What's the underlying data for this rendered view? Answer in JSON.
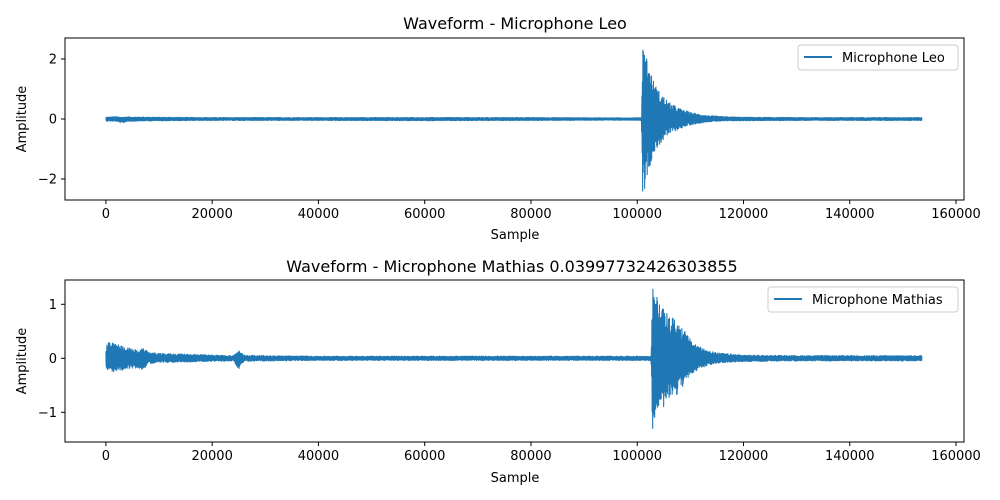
{
  "chart_data": [
    {
      "type": "line",
      "title": "Waveform - Microphone Leo",
      "xlabel": "Sample",
      "ylabel": "Amplitude",
      "xlim": [
        -7700,
        161500
      ],
      "ylim": [
        -2.7,
        2.7
      ],
      "xticks": [
        0,
        20000,
        40000,
        60000,
        80000,
        100000,
        120000,
        140000,
        160000
      ],
      "yticks": [
        -2,
        0,
        2
      ],
      "xtick_labels": [
        "0",
        "20000",
        "40000",
        "60000",
        "80000",
        "100000",
        "120000",
        "140000",
        "160000"
      ],
      "ytick_labels": [
        "−2",
        "0",
        "2"
      ],
      "grid": false,
      "legend_position": "top-right",
      "color": "#1f77b4",
      "series": [
        {
          "name": "Microphone Leo",
          "n_samples": 153600,
          "envelope": {
            "x": [
              0,
              2000,
              3000,
              4000,
              10000,
              20000,
              40000,
              60000,
              80000,
              99000,
              100800,
              101000,
              101500,
              102000,
              103000,
              104000,
              106000,
              108000,
              110000,
              113000,
              116000,
              120000,
              130000,
              140000,
              153600
            ],
            "upper": [
              0.06,
              0.08,
              0.06,
              0.07,
              0.06,
              0.05,
              0.05,
              0.05,
              0.05,
              0.04,
              0.05,
              2.45,
              2.4,
              1.9,
              1.3,
              0.95,
              0.55,
              0.35,
              0.22,
              0.12,
              0.08,
              0.06,
              0.05,
              0.05,
              0.05
            ],
            "lower": [
              -0.07,
              -0.08,
              -0.15,
              -0.08,
              -0.06,
              -0.05,
              -0.05,
              -0.06,
              -0.05,
              -0.04,
              -0.05,
              -2.45,
              -2.3,
              -1.8,
              -1.2,
              -0.9,
              -0.5,
              -0.33,
              -0.2,
              -0.1,
              -0.07,
              -0.06,
              -0.05,
              -0.05,
              -0.05
            ]
          }
        }
      ]
    },
    {
      "type": "line",
      "title": "Waveform - Microphone Mathias 0.03997732426303855",
      "xlabel": "Sample",
      "ylabel": "Amplitude",
      "xlim": [
        -7700,
        161500
      ],
      "ylim": [
        -1.55,
        1.45
      ],
      "xticks": [
        0,
        20000,
        40000,
        60000,
        80000,
        100000,
        120000,
        140000,
        160000
      ],
      "yticks": [
        -1,
        0,
        1
      ],
      "xtick_labels": [
        "0",
        "20000",
        "40000",
        "60000",
        "80000",
        "100000",
        "120000",
        "140000",
        "160000"
      ],
      "ytick_labels": [
        "−1",
        "0",
        "1"
      ],
      "grid": false,
      "legend_position": "top-right",
      "color": "#1f77b4",
      "series": [
        {
          "name": "Microphone Mathias",
          "n_samples": 153600,
          "envelope": {
            "x": [
              0,
              500,
              2000,
              4000,
              6000,
              7000,
              8000,
              10000,
              15000,
              20000,
              24000,
              25000,
              26000,
              30000,
              40000,
              60000,
              80000,
              100000,
              102600,
              102900,
              103500,
              104500,
              106000,
              108000,
              110000,
              112000,
              115000,
              120000,
              130000,
              140000,
              153600
            ],
            "upper": [
              0.22,
              0.3,
              0.27,
              0.2,
              0.15,
              0.18,
              0.12,
              0.09,
              0.08,
              0.06,
              0.05,
              0.15,
              0.06,
              0.05,
              0.04,
              0.04,
              0.04,
              0.04,
              0.04,
              1.3,
              1.2,
              0.95,
              0.8,
              0.65,
              0.35,
              0.2,
              0.1,
              0.06,
              0.05,
              0.05,
              0.05
            ],
            "lower": [
              -0.2,
              -0.25,
              -0.25,
              -0.2,
              -0.18,
              -0.22,
              -0.1,
              -0.08,
              -0.07,
              -0.06,
              -0.05,
              -0.22,
              -0.06,
              -0.05,
              -0.04,
              -0.04,
              -0.04,
              -0.04,
              -0.04,
              -1.42,
              -1.25,
              -0.95,
              -0.8,
              -0.62,
              -0.3,
              -0.18,
              -0.09,
              -0.06,
              -0.05,
              -0.05,
              -0.05
            ]
          }
        }
      ]
    }
  ]
}
